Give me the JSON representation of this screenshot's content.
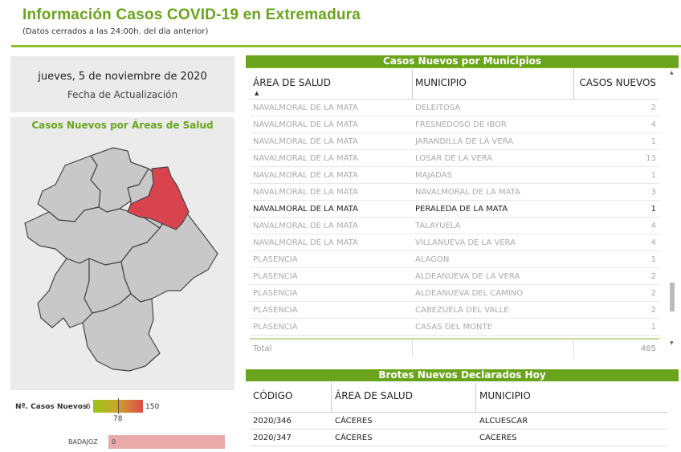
{
  "header": {
    "title": "Información Casos COVID-19 en Extremadura",
    "subtitle": "(Datos cerrados a las 24:00h. del día anterior)"
  },
  "date_card": {
    "date": "jueves, 5 de noviembre de 2020",
    "label": "Fecha de Actualización"
  },
  "map": {
    "title": "Casos Nuevos por Áreas de Salud",
    "highlight_color": "#d9434e",
    "base_color": "#c8c8c8"
  },
  "legend": {
    "label": "Nº. Casos Nuevos",
    "min": "6",
    "max": "150",
    "mid": "78",
    "badajoz_label": "BADAJOZ",
    "badajoz_value": "0"
  },
  "municipios": {
    "heading": "Casos Nuevos por Municipios",
    "columns": [
      "ÁREA DE SALUD",
      "MUNICIPIO",
      "CASOS NUEVOS"
    ],
    "rows": [
      {
        "area": "NAVALMORAL DE LA MATA",
        "municipio": "DELEITOSA",
        "casos": "2"
      },
      {
        "area": "NAVALMORAL DE LA MATA",
        "municipio": "FRESNEDOSO DE IBOR",
        "casos": "4"
      },
      {
        "area": "NAVALMORAL DE LA MATA",
        "municipio": "JARANDILLA DE LA VERA",
        "casos": "1"
      },
      {
        "area": "NAVALMORAL DE LA MATA",
        "municipio": "LOSAR DE LA VERA",
        "casos": "13"
      },
      {
        "area": "NAVALMORAL DE LA MATA",
        "municipio": "MAJADAS",
        "casos": "1"
      },
      {
        "area": "NAVALMORAL DE LA MATA",
        "municipio": "NAVALMORAL DE LA MATA",
        "casos": "3"
      },
      {
        "area": "NAVALMORAL DE LA MATA",
        "municipio": "PERALEDA DE LA MATA",
        "casos": "1"
      },
      {
        "area": "NAVALMORAL DE LA MATA",
        "municipio": "TALAYUELA",
        "casos": "4"
      },
      {
        "area": "NAVALMORAL DE LA MATA",
        "municipio": "VILLANUEVA DE LA VERA",
        "casos": "4"
      },
      {
        "area": "PLASENCIA",
        "municipio": "ALAGON",
        "casos": "1"
      },
      {
        "area": "PLASENCIA",
        "municipio": "ALDEANUEVA DE LA VERA",
        "casos": "2"
      },
      {
        "area": "PLASENCIA",
        "municipio": "ALDEANUEVA DEL CAMINO",
        "casos": "2"
      },
      {
        "area": "PLASENCIA",
        "municipio": "CABEZUELA DEL VALLE",
        "casos": "2"
      },
      {
        "area": "PLASENCIA",
        "municipio": "CASAS DEL MONTE",
        "casos": "1"
      }
    ],
    "total_label": "Total",
    "total_value": "485"
  },
  "brotes": {
    "heading": "Brotes Nuevos Declarados Hoy",
    "columns": [
      "CÓDIGO",
      "ÁREA DE SALUD",
      "MUNICIPIO"
    ],
    "rows": [
      {
        "codigo": "2020/346",
        "area": "CÁCERES",
        "municipio": "ALCUESCAR"
      },
      {
        "codigo": "2020/347",
        "area": "CÁCERES",
        "municipio": "CACERES"
      }
    ]
  }
}
